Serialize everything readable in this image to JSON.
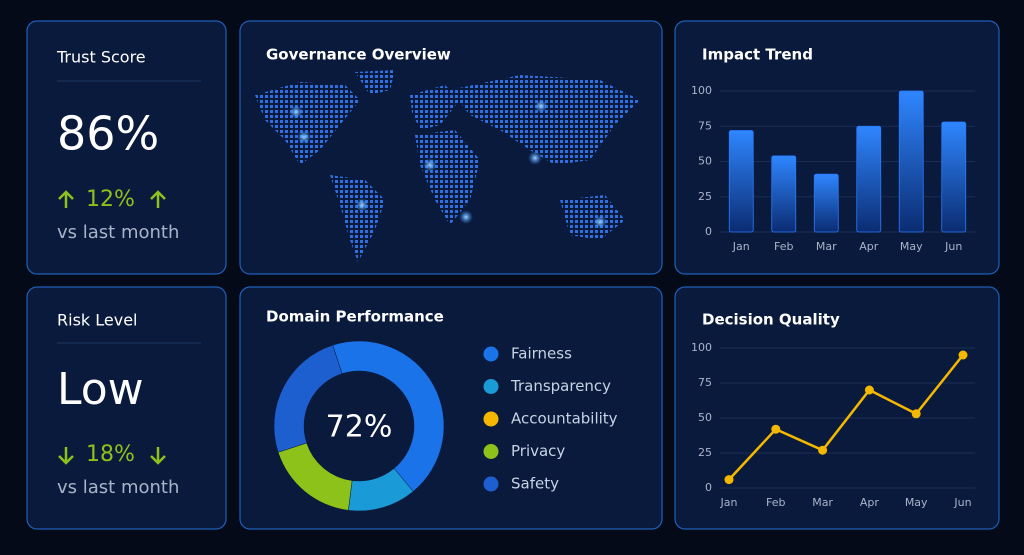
{
  "cards": [
    {
      "title": "Trust Score",
      "value": "86%",
      "change": "12%",
      "note": "vs last month"
    },
    {
      "title": "Risk Level",
      "value": "Low",
      "change": "18%",
      "note": "vs last month"
    }
  ],
  "map": {
    "title": "Governance Overview"
  },
  "chart_data": [
    {
      "type": "bar",
      "title": "Impact Trend",
      "categories": [
        "Jan",
        "Feb",
        "Mar",
        "Apr",
        "May",
        "Jun"
      ],
      "values": [
        72,
        54,
        41,
        75,
        100,
        78
      ],
      "color": "#2a7bff",
      "ylim": [
        0,
        100
      ],
      "yticks": [
        0,
        25,
        50,
        75,
        100
      ],
      "grid": true
    },
    {
      "type": "pie",
      "title": "Domain Performance",
      "center_label": "72%",
      "categories": [
        "Fairness",
        "Transparency",
        "Accountability",
        "Privacy",
        "Safety"
      ],
      "values": [
        44,
        13,
        0,
        18,
        25
      ],
      "colors": [
        "#1a73e8",
        "#1a9ad6",
        "#f5b800",
        "#8cc21a",
        "#1d5fcf"
      ]
    },
    {
      "type": "line",
      "title": "Decision Quality",
      "categories": [
        "Jan",
        "Feb",
        "Mar",
        "Apr",
        "May",
        "Jun"
      ],
      "values": [
        6,
        42,
        27,
        70,
        53,
        95
      ],
      "color": "#f5b800",
      "ylim": [
        0,
        100
      ],
      "yticks": [
        0,
        25,
        50,
        75,
        100
      ],
      "grid": true
    }
  ]
}
